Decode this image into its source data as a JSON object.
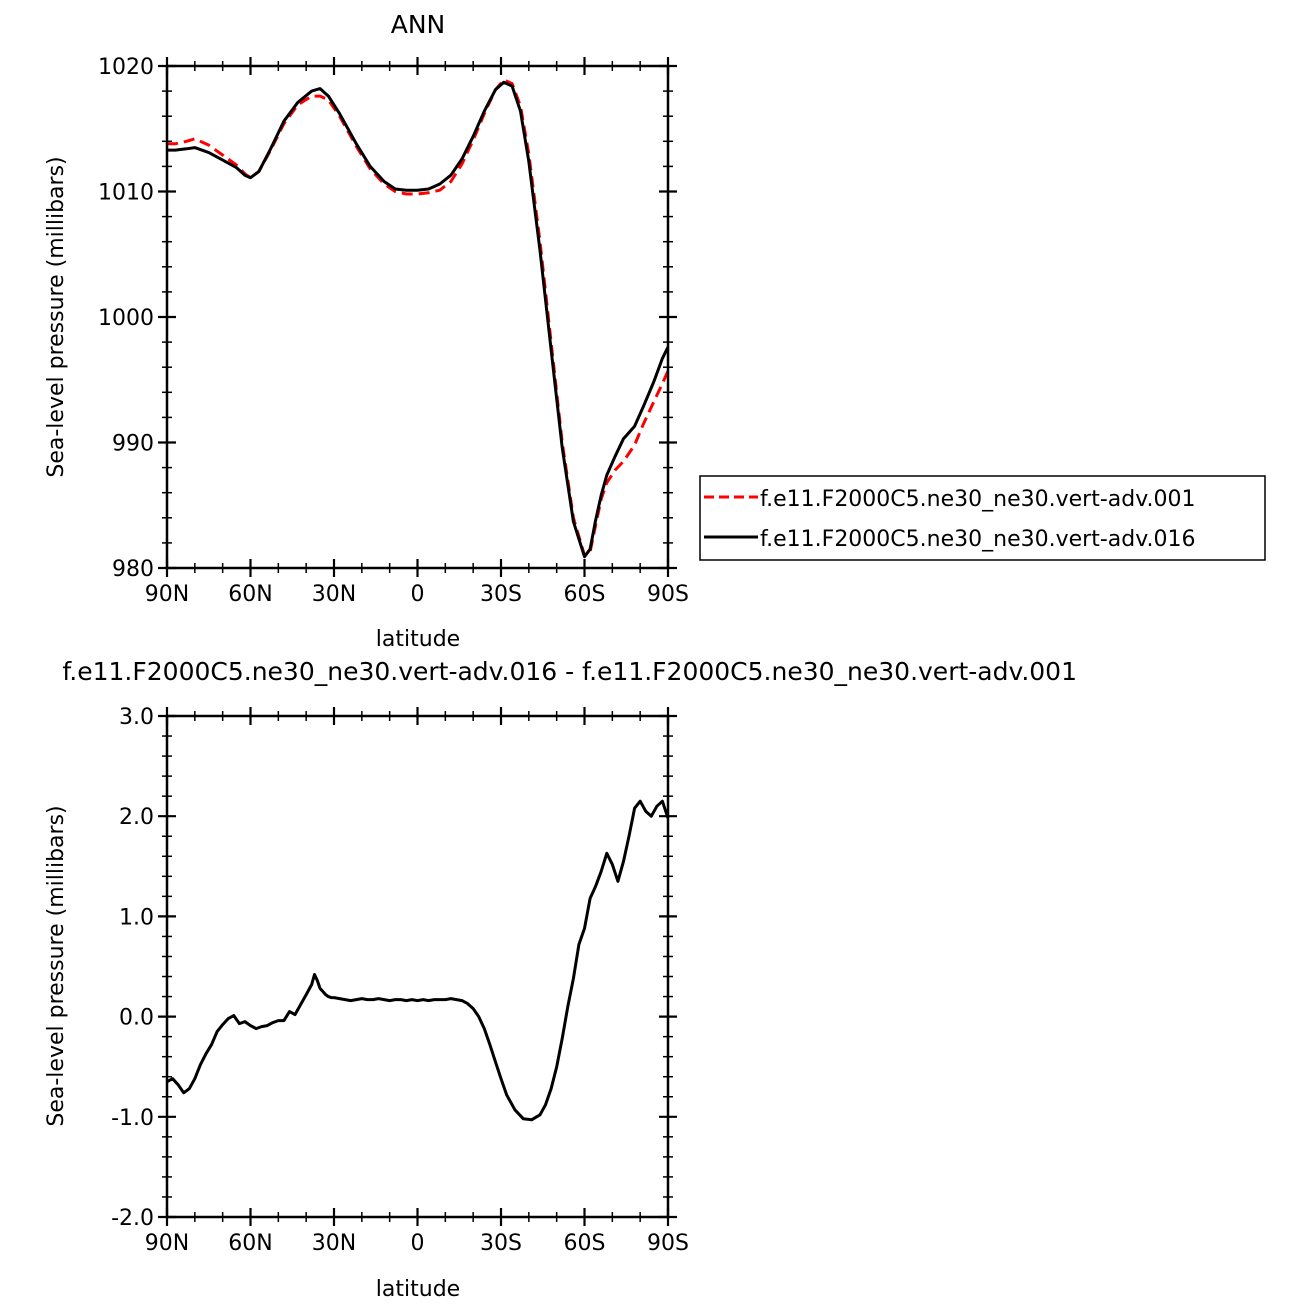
{
  "chart_data": [
    {
      "type": "line",
      "title": "ANN",
      "xlabel": "latitude",
      "ylabel": "Sea-level pressure (millibars)",
      "xlim": [
        90,
        -90
      ],
      "ylim": [
        980,
        1020
      ],
      "x_ticks": [
        90,
        60,
        30,
        0,
        -30,
        -60,
        -90
      ],
      "x_tick_labels": [
        "90N",
        "60N",
        "30N",
        "0",
        "30S",
        "60S",
        "90S"
      ],
      "y_ticks": [
        980,
        990,
        1000,
        1010,
        1020
      ],
      "y_tick_labels": [
        "980",
        "990",
        "1000",
        "1010",
        "1020"
      ],
      "grid": false,
      "legend_position": "right",
      "series": [
        {
          "name": "f.e11.F2000C5.ne30_ne30.vert-adv.001",
          "color": "#ff0000",
          "dash": "dashed",
          "x": [
            90,
            87,
            83,
            80,
            75,
            70,
            65,
            62,
            60,
            57,
            53,
            48,
            43,
            38,
            35,
            32,
            28,
            22,
            17,
            12,
            8,
            4,
            0,
            -4,
            -8,
            -12,
            -16,
            -20,
            -24,
            -28,
            -31,
            -34,
            -37,
            -40,
            -44,
            -48,
            -52,
            -56,
            -60,
            -62,
            -64,
            -66,
            -68,
            -71,
            -74,
            -78,
            -81,
            -85,
            -88,
            -90
          ],
          "y": [
            1013.8,
            1013.8,
            1014.0,
            1014.2,
            1013.7,
            1012.9,
            1012.1,
            1011.4,
            1011.1,
            1011.6,
            1013.2,
            1015.4,
            1016.9,
            1017.6,
            1017.6,
            1017.3,
            1016.0,
            1013.6,
            1011.8,
            1010.6,
            1010.0,
            1009.8,
            1009.8,
            1009.9,
            1010.1,
            1010.8,
            1012.2,
            1014.1,
            1016.2,
            1018.1,
            1018.9,
            1018.6,
            1016.8,
            1013.0,
            1006.0,
            998.0,
            990.0,
            984.0,
            981.0,
            981.3,
            983.4,
            985.5,
            986.8,
            987.8,
            988.5,
            989.8,
            991.4,
            993.3,
            994.7,
            995.7
          ]
        },
        {
          "name": "f.e11.F2000C5.ne30_ne30.vert-adv.016",
          "color": "#000000",
          "dash": "solid",
          "x": [
            90,
            87,
            83,
            80,
            75,
            70,
            65,
            62,
            60,
            57,
            53,
            48,
            43,
            38,
            35,
            32,
            28,
            22,
            17,
            12,
            8,
            4,
            0,
            -4,
            -8,
            -12,
            -16,
            -20,
            -24,
            -28,
            -31,
            -34,
            -37,
            -40,
            -44,
            -48,
            -52,
            -56,
            -60,
            -62,
            -64,
            -66,
            -68,
            -71,
            -74,
            -78,
            -81,
            -85,
            -88,
            -90
          ],
          "y": [
            1013.3,
            1013.3,
            1013.4,
            1013.5,
            1013.1,
            1012.5,
            1011.9,
            1011.3,
            1011.1,
            1011.6,
            1013.3,
            1015.6,
            1017.1,
            1018.0,
            1018.2,
            1017.6,
            1016.2,
            1013.8,
            1012.0,
            1010.8,
            1010.2,
            1010.1,
            1010.1,
            1010.2,
            1010.6,
            1011.3,
            1012.6,
            1014.4,
            1016.4,
            1018.1,
            1018.7,
            1018.4,
            1016.4,
            1012.4,
            1005.3,
            997.4,
            989.6,
            983.7,
            980.9,
            981.5,
            983.8,
            985.8,
            987.4,
            988.9,
            990.3,
            991.3,
            992.8,
            994.9,
            996.7,
            997.6
          ]
        }
      ]
    },
    {
      "type": "line",
      "title": "f.e11.F2000C5.ne30_ne30.vert-adv.016 - f.e11.F2000C5.ne30_ne30.vert-adv.001",
      "xlabel": "latitude",
      "ylabel": "Sea-level pressure (millibars)",
      "xlim": [
        90,
        -90
      ],
      "ylim": [
        -2.0,
        3.0
      ],
      "x_ticks": [
        90,
        60,
        30,
        0,
        -30,
        -60,
        -90
      ],
      "x_tick_labels": [
        "90N",
        "60N",
        "30N",
        "0",
        "30S",
        "60S",
        "90S"
      ],
      "y_ticks": [
        -2.0,
        -1.0,
        0.0,
        1.0,
        2.0,
        3.0
      ],
      "y_tick_labels": [
        "-2.0",
        "-1.0",
        "0.0",
        "1.0",
        "2.0",
        "3.0"
      ],
      "grid": false,
      "series": [
        {
          "color": "#000000",
          "dash": "solid",
          "x": [
            90,
            88,
            86,
            84,
            82,
            80,
            78,
            76,
            74,
            72,
            70,
            68,
            66,
            64,
            62,
            60,
            58,
            56,
            54,
            52,
            50,
            48,
            46,
            44,
            42,
            40,
            38,
            37,
            36,
            35,
            34,
            33,
            32,
            31,
            30,
            28,
            26,
            24,
            22,
            20,
            18,
            16,
            14,
            12,
            10,
            8,
            6,
            4,
            2,
            0,
            -2,
            -4,
            -6,
            -8,
            -10,
            -12,
            -14,
            -16,
            -18,
            -20,
            -22,
            -24,
            -26,
            -28,
            -30,
            -32,
            -35,
            -38,
            -41,
            -44,
            -46,
            -48,
            -50,
            -52,
            -54,
            -56,
            -58,
            -60,
            -62,
            -64,
            -66,
            -68,
            -70,
            -72,
            -74,
            -76,
            -78,
            -80,
            -82,
            -84,
            -86,
            -88,
            -90
          ],
          "y": [
            -0.65,
            -0.62,
            -0.68,
            -0.76,
            -0.72,
            -0.62,
            -0.48,
            -0.37,
            -0.28,
            -0.15,
            -0.08,
            -0.02,
            0.01,
            -0.07,
            -0.05,
            -0.09,
            -0.12,
            -0.1,
            -0.09,
            -0.06,
            -0.04,
            -0.04,
            0.05,
            0.02,
            0.12,
            0.22,
            0.32,
            0.42,
            0.36,
            0.28,
            0.25,
            0.22,
            0.2,
            0.19,
            0.19,
            0.18,
            0.17,
            0.16,
            0.17,
            0.18,
            0.17,
            0.17,
            0.18,
            0.17,
            0.16,
            0.17,
            0.17,
            0.16,
            0.17,
            0.16,
            0.17,
            0.16,
            0.17,
            0.17,
            0.17,
            0.18,
            0.17,
            0.16,
            0.13,
            0.08,
            0.0,
            -0.12,
            -0.28,
            -0.45,
            -0.62,
            -0.78,
            -0.93,
            -1.02,
            -1.03,
            -0.98,
            -0.88,
            -0.72,
            -0.5,
            -0.22,
            0.1,
            0.38,
            0.72,
            0.88,
            1.18,
            1.3,
            1.45,
            1.63,
            1.52,
            1.35,
            1.55,
            1.8,
            2.08,
            2.15,
            2.05,
            2.0,
            2.1,
            2.15,
            1.98
          ]
        }
      ]
    }
  ]
}
